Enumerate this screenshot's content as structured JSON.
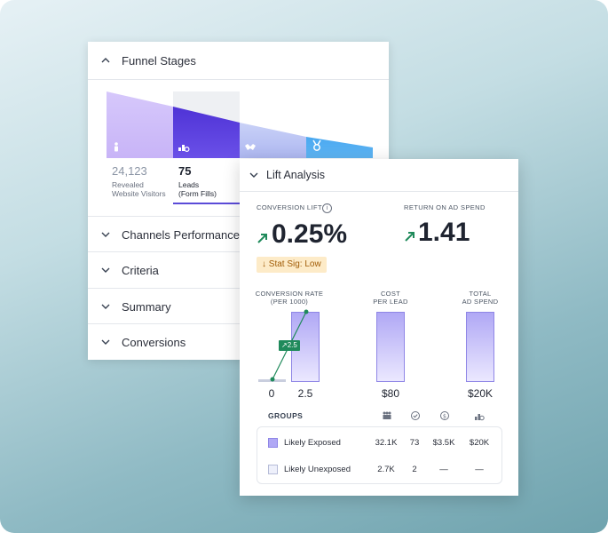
{
  "funnel": {
    "title": "Funnel Stages",
    "stages": [
      {
        "value": "24,123",
        "label_line1": "Revealed",
        "label_line2": "Website Visitors",
        "icon": "person-icon"
      },
      {
        "value": "75",
        "label_line1": "Leads",
        "label_line2": "(Form Fills)",
        "icon": "leads-icon"
      },
      {
        "icon": "handshake-icon"
      },
      {
        "icon": "medal-icon"
      }
    ],
    "sections": [
      "Channels Performance",
      "Criteria",
      "Summary",
      "Conversions"
    ]
  },
  "lift": {
    "title": "Lift Analysis",
    "conversion_lift": {
      "label": "CONVERSION LIFT",
      "value": "0.25%",
      "info_glyph": "i"
    },
    "roas": {
      "label": "RETURN ON AD SPEND",
      "value": "1.41"
    },
    "stat_sig": "↓ Stat Sig: Low",
    "columns": {
      "conversion_rate": {
        "line1": "CONVERSION RATE",
        "line2": "(PER 1000)",
        "unexposed": "0",
        "exposed": "2.5",
        "delta": "2.5"
      },
      "cost_per_lead": {
        "line1": "COST",
        "line2": "PER LEAD",
        "value": "$80"
      },
      "total_ad_spend": {
        "line1": "TOTAL",
        "line2": "AD SPEND",
        "value": "$20K"
      }
    },
    "groups": {
      "title": "GROUPS",
      "header_icons": [
        "people-icon",
        "check-circle-icon",
        "dollar-icon",
        "leads-icon"
      ],
      "rows": [
        {
          "name": "Likely Exposed",
          "cells": [
            "32.1K",
            "73",
            "$3.5K",
            "$20K"
          ]
        },
        {
          "name": "Likely Unexposed",
          "cells": [
            "2.7K",
            "2",
            "—",
            "—"
          ]
        }
      ]
    },
    "colors": {
      "accent": "#5b4bd8",
      "positive": "#1f8a5b",
      "badge_bg": "#fdebc8",
      "badge_text": "#a15c07"
    }
  }
}
